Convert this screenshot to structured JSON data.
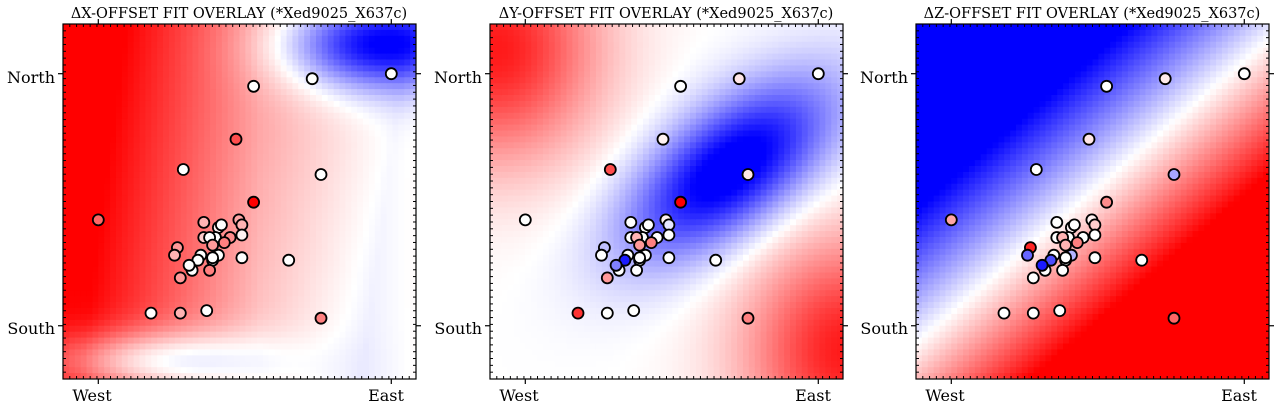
{
  "panels": [
    {
      "title": "ΔX-OFFSET FIT OVERLAY (*Xed9025_X637c)",
      "surface": "dx",
      "x_ticks": [
        "West",
        "East"
      ],
      "y_ticks": [
        "North",
        "South"
      ]
    },
    {
      "title": "ΔY-OFFSET FIT OVERLAY (*Xed9025_X637c)",
      "surface": "dy",
      "x_ticks": [
        "West",
        "East"
      ],
      "y_ticks": [
        "North",
        "South"
      ]
    },
    {
      "title": "ΔZ-OFFSET FIT OVERLAY (*Xed9025_X637c)",
      "surface": "dz",
      "x_ticks": [
        "West",
        "East"
      ],
      "y_ticks": [
        "North",
        "South"
      ]
    }
  ],
  "chart_data": {
    "type": "heatmap",
    "colormap": "bwr",
    "colors": {
      "low": "#0000ff",
      "mid": "#ffffff",
      "high": "#ff0000",
      "marker_edge": "#000000"
    },
    "x_tick_positions": {
      "West": 0.0,
      "East": 1.0
    },
    "y_tick_positions": {
      "South": 0.0,
      "North": 1.0
    },
    "points": [
      {
        "x": 0.0,
        "y": 0.42,
        "dx": 0.6,
        "dy": 0.0,
        "dz": 0.35
      },
      {
        "x": 0.53,
        "y": 0.95,
        "dx": 0.0,
        "dy": 0.0,
        "dz": 0.0
      },
      {
        "x": 0.73,
        "y": 0.98,
        "dx": 0.0,
        "dy": 0.1,
        "dz": 0.08
      },
      {
        "x": 1.0,
        "y": 1.0,
        "dx": 0.0,
        "dy": 0.0,
        "dz": 0.0
      },
      {
        "x": 0.47,
        "y": 0.74,
        "dx": 0.7,
        "dy": 0.05,
        "dz": 0.1
      },
      {
        "x": 0.29,
        "y": 0.62,
        "dx": 0.0,
        "dy": 0.7,
        "dz": 0.0
      },
      {
        "x": 0.76,
        "y": 0.6,
        "dx": 0.0,
        "dy": 0.1,
        "dz": -0.35
      },
      {
        "x": 0.53,
        "y": 0.49,
        "dx": 1.0,
        "dy": 1.0,
        "dz": 0.45
      },
      {
        "x": 0.36,
        "y": 0.41,
        "dx": 0.3,
        "dy": 0.0,
        "dz": 0.0
      },
      {
        "x": 0.48,
        "y": 0.42,
        "dx": 0.35,
        "dy": 0.05,
        "dz": 0.05
      },
      {
        "x": 0.49,
        "y": 0.4,
        "dx": 0.3,
        "dy": -0.1,
        "dz": 0.2
      },
      {
        "x": 0.41,
        "y": 0.39,
        "dx": 0.05,
        "dy": 0.0,
        "dz": 0.05
      },
      {
        "x": 0.42,
        "y": 0.4,
        "dx": 0.0,
        "dy": 0.0,
        "dz": 0.0
      },
      {
        "x": 0.4,
        "y": 0.35,
        "dx": 0.0,
        "dy": 0.0,
        "dz": 0.0
      },
      {
        "x": 0.36,
        "y": 0.35,
        "dx": 0.2,
        "dy": 0.0,
        "dz": 0.0
      },
      {
        "x": 0.38,
        "y": 0.35,
        "dx": 0.0,
        "dy": 0.3,
        "dz": 0.3
      },
      {
        "x": 0.45,
        "y": 0.35,
        "dx": 0.45,
        "dy": 0.0,
        "dz": 0.0
      },
      {
        "x": 0.43,
        "y": 0.33,
        "dx": 0.5,
        "dy": 0.5,
        "dz": 0.5
      },
      {
        "x": 0.49,
        "y": 0.36,
        "dx": 0.05,
        "dy": 0.0,
        "dz": 0.0
      },
      {
        "x": 0.27,
        "y": 0.31,
        "dx": 0.4,
        "dy": -0.25,
        "dz": 0.85
      },
      {
        "x": 0.39,
        "y": 0.32,
        "dx": 0.4,
        "dy": 0.4,
        "dz": 0.3
      },
      {
        "x": 0.41,
        "y": 0.28,
        "dx": 0.0,
        "dy": 0.0,
        "dz": -0.3
      },
      {
        "x": 0.35,
        "y": 0.28,
        "dx": 0.0,
        "dy": 0.0,
        "dz": 0.0
      },
      {
        "x": 0.39,
        "y": 0.26,
        "dx": 0.0,
        "dy": 0.0,
        "dz": 0.0
      },
      {
        "x": 0.26,
        "y": 0.28,
        "dx": 0.3,
        "dy": 0.0,
        "dz": -0.6
      },
      {
        "x": 0.34,
        "y": 0.26,
        "dx": 0.0,
        "dy": -0.9,
        "dz": -0.7
      },
      {
        "x": 0.38,
        "y": 0.22,
        "dx": 0.5,
        "dy": 0.0,
        "dz": 0.0
      },
      {
        "x": 0.32,
        "y": 0.22,
        "dx": 0.0,
        "dy": 0.0,
        "dz": 0.0
      },
      {
        "x": 0.39,
        "y": 0.27,
        "dx": 0.0,
        "dy": 0.0,
        "dz": 0.0
      },
      {
        "x": 0.49,
        "y": 0.27,
        "dx": 0.0,
        "dy": 0.0,
        "dz": 0.0
      },
      {
        "x": 0.65,
        "y": 0.26,
        "dx": 0.0,
        "dy": 0.0,
        "dz": 0.0
      },
      {
        "x": 0.31,
        "y": 0.24,
        "dx": 0.0,
        "dy": -0.5,
        "dz": -0.9
      },
      {
        "x": 0.28,
        "y": 0.19,
        "dx": 0.4,
        "dy": 0.4,
        "dz": 0.0
      },
      {
        "x": 0.18,
        "y": 0.05,
        "dx": 0.0,
        "dy": 0.8,
        "dz": 0.0
      },
      {
        "x": 0.28,
        "y": 0.05,
        "dx": 0.3,
        "dy": 0.0,
        "dz": 0.0
      },
      {
        "x": 0.37,
        "y": 0.06,
        "dx": 0.0,
        "dy": 0.0,
        "dz": 0.0
      },
      {
        "x": 0.76,
        "y": 0.03,
        "dx": 0.5,
        "dy": 0.5,
        "dz": 0.6
      }
    ]
  }
}
